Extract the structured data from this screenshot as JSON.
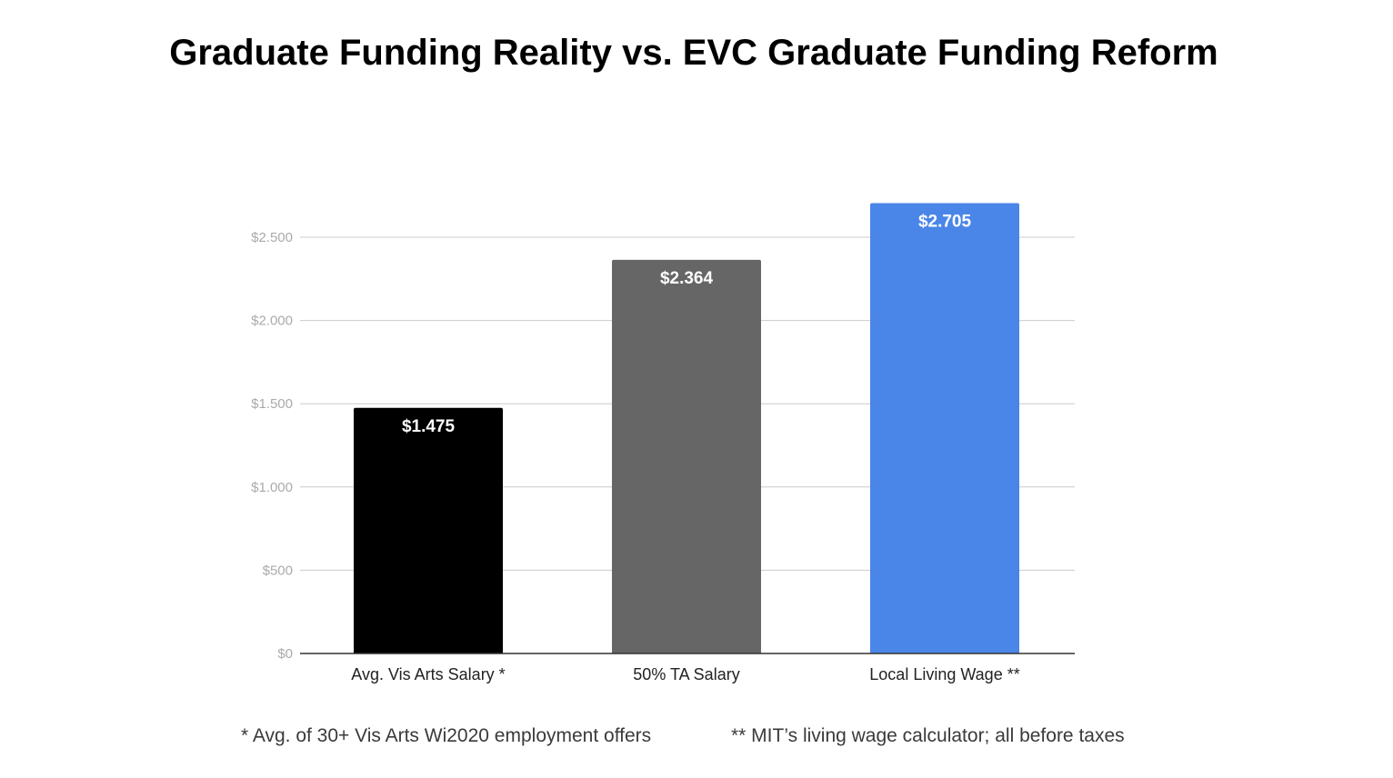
{
  "chart_data": {
    "type": "bar",
    "title": "Graduate Funding Reality vs. EVC Graduate Funding Reform",
    "categories": [
      "Avg. Vis Arts Salary *",
      "50% TA Salary",
      "Local Living Wage **"
    ],
    "values": [
      1475,
      2364,
      2705
    ],
    "value_labels": [
      "$1.475",
      "$2.364",
      "$2.705"
    ],
    "bar_colors": [
      "#000000",
      "#666666",
      "#4a86e8"
    ],
    "ylim": [
      0,
      2750
    ],
    "yticks": [
      0,
      500,
      1000,
      1500,
      2000,
      2500
    ],
    "ytick_labels": [
      "$0",
      "$500",
      "$1.000",
      "$1.500",
      "$2.000",
      "$2.500"
    ],
    "xlabel": "",
    "ylabel": "",
    "grid": true,
    "legend": "none"
  },
  "footnotes": {
    "left": "* Avg. of 30+ Vis Arts Wi2020 employment offers",
    "right": "** MIT’s living wage calculator; all before taxes"
  }
}
